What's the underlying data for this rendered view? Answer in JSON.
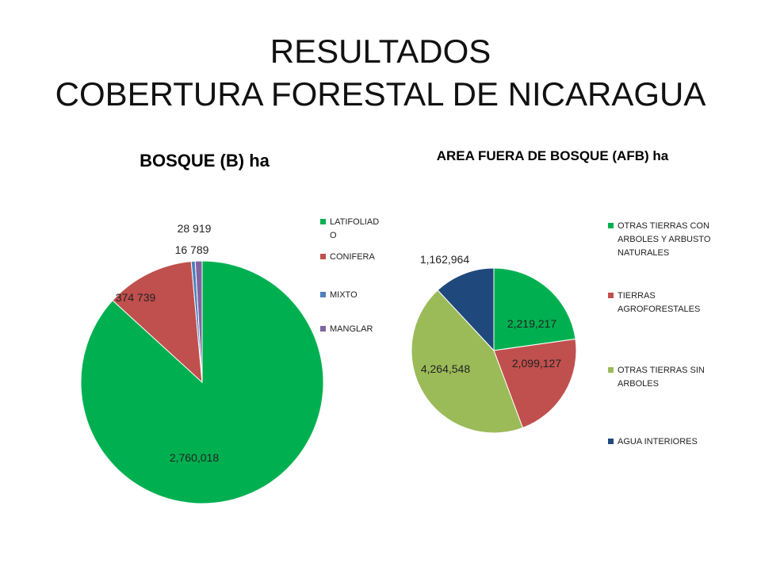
{
  "slide": {
    "title_line1": "RESULTADOS",
    "title_line2": "COBERTURA FORESTAL DE NICARAGUA"
  },
  "chart_data": [
    {
      "type": "pie",
      "title": "BOSQUE  (B) ha",
      "categories": [
        "LATIFOLIADO",
        "CONIFERA",
        "MIXTO",
        "MANGLAR"
      ],
      "legend_labels": [
        [
          "LATIFOLIAD",
          "O"
        ],
        [
          "CONIFERA"
        ],
        [
          "MIXTO"
        ],
        [
          "MANGLAR"
        ]
      ],
      "values": [
        2760018,
        374739,
        16789,
        28919
      ],
      "data_labels": [
        "2,760,018",
        "374 739",
        "16 789",
        "28 919"
      ],
      "colors": [
        "#00B050",
        "#C0504D",
        "#4F81BD",
        "#8064A2"
      ],
      "legend_position": "right"
    },
    {
      "type": "pie",
      "title": "AREA FUERA DE BOSQUE (AFB) ha",
      "categories": [
        "OTRAS TIERRAS CON ARBOLES Y ARBUSTO NATURALES",
        "TIERRAS AGROFORESTALES",
        "OTRAS TIERRAS SIN ARBOLES",
        "AGUA INTERIORES"
      ],
      "legend_labels": [
        [
          "OTRAS TIERRAS CON",
          "ARBOLES Y ARBUSTO",
          "NATURALES"
        ],
        [
          "TIERRAS",
          "AGROFORESTALES"
        ],
        [
          "OTRAS TIERRAS SIN",
          "ARBOLES"
        ],
        [
          "AGUA INTERIORES"
        ]
      ],
      "values": [
        2219217,
        2099127,
        4264548,
        1162964
      ],
      "data_labels": [
        "2,219,217",
        "2,099,127",
        "4,264,548",
        "1,162,964"
      ],
      "colors": [
        "#00B050",
        "#C0504D",
        "#9BBB59",
        "#1F497D"
      ],
      "legend_position": "right"
    }
  ]
}
